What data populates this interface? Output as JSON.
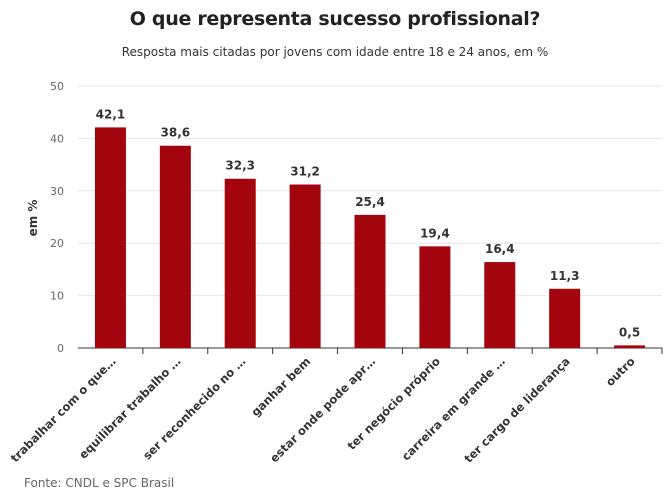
{
  "chart_data": {
    "type": "bar",
    "title": "O que representa sucesso profissional?",
    "subtitle": "Resposta mais citadas por jovens com idade entre 18 e 24 anos, em %",
    "ylabel": "em %",
    "xlabel": "",
    "ylim": [
      0,
      50
    ],
    "yticks": [
      0,
      10,
      20,
      30,
      40,
      50
    ],
    "categories": [
      "trabalhar com o que…",
      "equilibrar trabalho …",
      "ser reconhecido no …",
      "ganhar bem",
      "estar onde pode apr…",
      "ter negócio próprio",
      "carreira em grande …",
      "ter cargo de liderança",
      "outro"
    ],
    "values": [
      42.1,
      38.6,
      32.3,
      31.2,
      25.4,
      19.4,
      16.4,
      11.3,
      0.5
    ],
    "value_labels": [
      "42,1",
      "38,6",
      "32,3",
      "31,2",
      "25,4",
      "19,4",
      "16,4",
      "11,3",
      "0,5"
    ],
    "bar_color": "#a2050e",
    "grid": true,
    "legend": "none"
  },
  "source": "Fonte: CNDL e SPC Brasil"
}
